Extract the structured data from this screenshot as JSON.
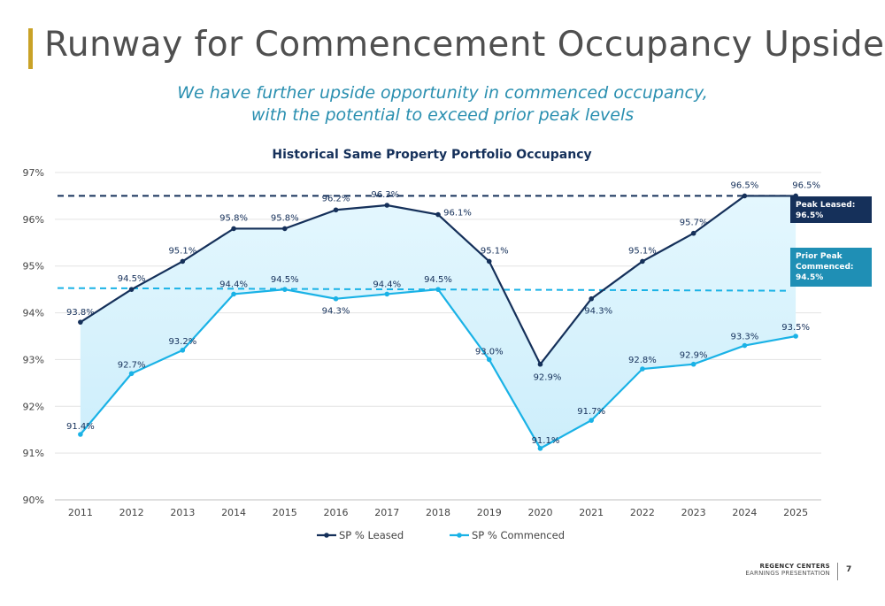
{
  "slide": {
    "title": "Runway for Commencement Occupancy Upside",
    "subtitle_line1": "We have further upside opportunity in commenced occupancy,",
    "subtitle_line2": "with the potential to exceed prior peak levels",
    "brand_name": "REGENCY CENTERS",
    "brand_sub": "EARNINGS PRESENTATION",
    "page_number": "7",
    "accent_color": "#c9a227"
  },
  "annotations": {
    "peak": {
      "line1": "Peak Leased:",
      "line2": "96.5%",
      "color": "#15305a"
    },
    "prior": {
      "line1": "Prior Peak",
      "line2": "Commenced:",
      "line3": "94.5%",
      "color": "#1f8fb5"
    }
  },
  "chart_data": {
    "type": "line",
    "title": "Historical Same Property Portfolio Occupancy",
    "categories": [
      "2011",
      "2012",
      "2013",
      "2014",
      "2015",
      "2016",
      "2017",
      "2018",
      "2019",
      "2020",
      "2021",
      "2022",
      "2023",
      "2024",
      "2025"
    ],
    "y_ticks": [
      "90%",
      "91%",
      "92%",
      "93%",
      "94%",
      "95%",
      "96%",
      "97%"
    ],
    "ylim": [
      90,
      97
    ],
    "grid": true,
    "legend_position": "bottom",
    "series": [
      {
        "name": "SP % Leased",
        "color": "#15305a",
        "values": [
          93.8,
          94.5,
          95.1,
          95.8,
          95.8,
          96.2,
          96.3,
          96.1,
          95.1,
          92.9,
          94.3,
          95.1,
          95.7,
          96.5,
          96.5
        ],
        "labels": [
          "93.8%",
          "94.5%",
          "95.1%",
          "95.8%",
          "95.8%",
          "96.2%",
          "96.3%",
          "96.1%",
          "95.1%",
          "92.9%",
          "94.3%",
          "95.1%",
          "95.7%",
          "96.5%",
          "96.5%"
        ]
      },
      {
        "name": "SP % Commenced",
        "color": "#1ab2e6",
        "values": [
          91.4,
          92.7,
          93.2,
          94.4,
          94.5,
          94.3,
          94.4,
          94.5,
          93.0,
          91.1,
          91.7,
          92.8,
          92.9,
          93.3,
          93.5
        ],
        "labels": [
          "91.4%",
          "92.7%",
          "93.2%",
          "94.4%",
          "94.5%",
          "94.3%",
          "94.4%",
          "94.5%",
          "93.0%",
          "91.1%",
          "91.7%",
          "92.8%",
          "92.9%",
          "93.3%",
          "93.5%"
        ]
      }
    ],
    "reference_lines": [
      {
        "value": 96.5,
        "color": "#15305a"
      },
      {
        "value": 94.5,
        "color": "#1ab2e6"
      }
    ],
    "fill_color": "#cdeefb"
  }
}
